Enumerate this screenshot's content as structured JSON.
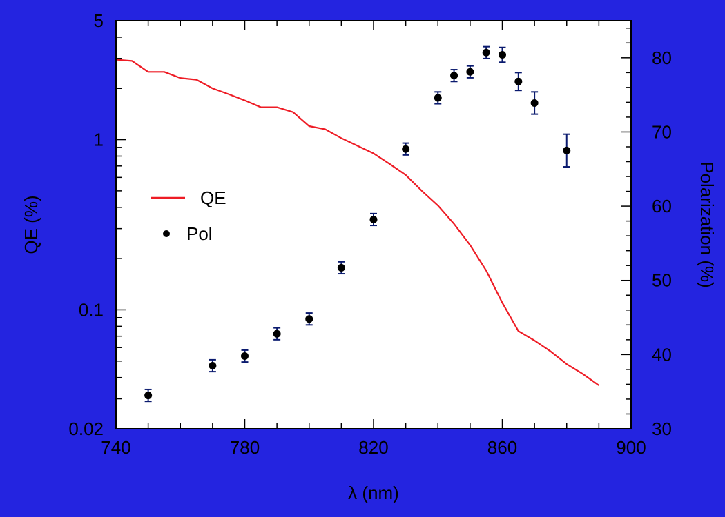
{
  "colors": {
    "frame_background": "#2424e0",
    "plot_background": "#ffffff",
    "qe_line": "#ee1c25",
    "pol_marker": "#000000",
    "error_bar": "#0a1a6e"
  },
  "chart_data": {
    "type": "line",
    "xlabel": "λ (nm)",
    "ylabel_left": "QE (%)",
    "ylabel_right": "Polarization (%)",
    "xlim": [
      740,
      900
    ],
    "x_ticks": [
      "740",
      "780",
      "820",
      "860",
      "900"
    ],
    "ylim_left": [
      0.02,
      5
    ],
    "yscale_left": "log",
    "y_ticks_left": [
      {
        "value": 5,
        "label": "5"
      },
      {
        "value": 1,
        "label": "1"
      },
      {
        "value": 0.1,
        "label": "0.1"
      },
      {
        "value": 0.02,
        "label": "0.02"
      }
    ],
    "ylim_right": [
      30,
      85
    ],
    "y_ticks_right": [
      "30",
      "40",
      "50",
      "60",
      "70",
      "80"
    ],
    "grid": false,
    "legend": {
      "placement": "center-left",
      "entries": [
        {
          "label": "QE",
          "kind": "line"
        },
        {
          "label": "Pol",
          "kind": "marker"
        }
      ]
    },
    "series": [
      {
        "name": "QE",
        "axis": "left",
        "kind": "line",
        "x": [
          740,
          745,
          750,
          755,
          760,
          765,
          770,
          775,
          780,
          785,
          790,
          795,
          800,
          805,
          810,
          815,
          820,
          825,
          830,
          835,
          840,
          845,
          850,
          855,
          860,
          865,
          870,
          875,
          880,
          885,
          890
        ],
        "y": [
          2.95,
          2.9,
          2.5,
          2.5,
          2.3,
          2.25,
          2.0,
          1.85,
          1.7,
          1.55,
          1.55,
          1.45,
          1.2,
          1.15,
          1.02,
          0.92,
          0.83,
          0.72,
          0.62,
          0.5,
          0.41,
          0.32,
          0.24,
          0.17,
          0.11,
          0.075,
          0.066,
          0.057,
          0.048,
          0.042,
          0.036
        ]
      },
      {
        "name": "Pol",
        "axis": "right",
        "kind": "scatter_with_errors",
        "x": [
          750,
          770,
          780,
          790,
          800,
          810,
          820,
          830,
          840,
          845,
          850,
          855,
          860,
          865,
          870,
          880
        ],
        "y": [
          34.5,
          38.5,
          39.8,
          42.8,
          44.8,
          51.7,
          58.2,
          67.7,
          74.6,
          77.6,
          78.1,
          80.7,
          80.4,
          76.8,
          73.9,
          67.5
        ],
        "err": [
          0.8,
          0.8,
          0.8,
          0.8,
          0.8,
          0.8,
          0.8,
          0.8,
          0.8,
          0.8,
          0.8,
          0.8,
          1.0,
          1.2,
          1.5,
          2.2
        ]
      }
    ]
  }
}
